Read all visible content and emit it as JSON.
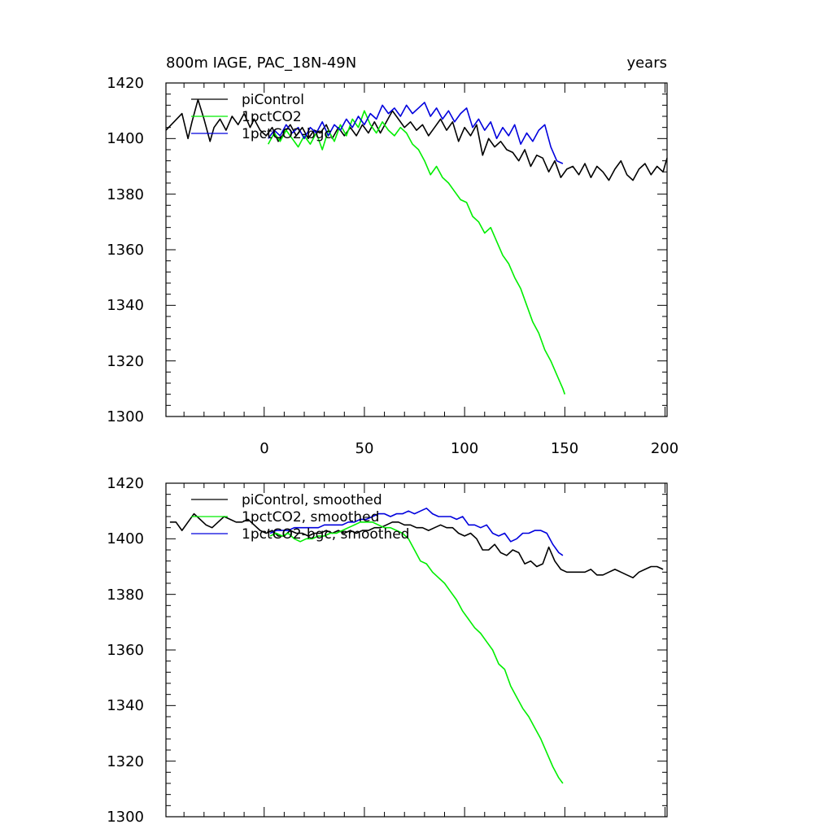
{
  "chart_data": [
    {
      "type": "line",
      "title": "800m IAGE, PAC_18N-49N",
      "xlabel": "years",
      "ylabel": "",
      "xlim": [
        -49,
        201
      ],
      "ylim": [
        1300,
        1420
      ],
      "xticks": [
        "0",
        "50",
        "100",
        "150",
        "200"
      ],
      "yticks": [
        "1300",
        "1320",
        "1340",
        "1360",
        "1380",
        "1400",
        "1420"
      ],
      "legend": {
        "position": "top-left"
      },
      "series": [
        {
          "name": "piControl",
          "color": "#000000",
          "x": [
            -49,
            -45,
            -41,
            -38,
            -36,
            -33,
            -30,
            -27,
            -25,
            -22,
            -19,
            -16,
            -13,
            -10,
            -7,
            -5,
            -2,
            1,
            4,
            7,
            10,
            13,
            16,
            19,
            22,
            25,
            28,
            31,
            34,
            37,
            40,
            43,
            46,
            49,
            52,
            55,
            58,
            61,
            64,
            67,
            70,
            73,
            76,
            79,
            82,
            85,
            88,
            91,
            94,
            97,
            100,
            103,
            106,
            109,
            112,
            115,
            118,
            121,
            124,
            127,
            130,
            133,
            136,
            139,
            142,
            145,
            148,
            151,
            154,
            157,
            160,
            163,
            166,
            169,
            172,
            175,
            178,
            181,
            184,
            187,
            190,
            193,
            196,
            199,
            201
          ],
          "values": [
            1403,
            1406,
            1409,
            1400,
            1406,
            1414,
            1407,
            1399,
            1404,
            1407,
            1403,
            1408,
            1405,
            1409,
            1404,
            1407,
            1403,
            1401,
            1404,
            1399,
            1402,
            1405,
            1401,
            1404,
            1400,
            1403,
            1402,
            1405,
            1400,
            1404,
            1401,
            1404,
            1401,
            1405,
            1402,
            1406,
            1402,
            1406,
            1410,
            1407,
            1404,
            1406,
            1403,
            1405,
            1401,
            1404,
            1407,
            1403,
            1406,
            1399,
            1404,
            1401,
            1405,
            1394,
            1400,
            1397,
            1399,
            1396,
            1395,
            1392,
            1396,
            1390,
            1394,
            1393,
            1388,
            1392,
            1386,
            1389,
            1390,
            1387,
            1391,
            1386,
            1390,
            1388,
            1385,
            1389,
            1392,
            1387,
            1385,
            1389,
            1391,
            1387,
            1390,
            1388,
            1393
          ]
        },
        {
          "name": "1pctCO2",
          "color": "#00ee00",
          "x": [
            2,
            5,
            8,
            11,
            14,
            17,
            20,
            23,
            26,
            29,
            32,
            35,
            38,
            41,
            44,
            47,
            50,
            53,
            56,
            59,
            62,
            65,
            68,
            71,
            74,
            77,
            80,
            83,
            86,
            89,
            92,
            95,
            98,
            101,
            104,
            107,
            110,
            113,
            116,
            119,
            122,
            125,
            128,
            131,
            134,
            137,
            140,
            143,
            146,
            149,
            150
          ],
          "values": [
            1398,
            1402,
            1399,
            1403,
            1400,
            1397,
            1401,
            1398,
            1402,
            1396,
            1403,
            1399,
            1405,
            1401,
            1407,
            1404,
            1410,
            1405,
            1402,
            1406,
            1403,
            1401,
            1404,
            1402,
            1398,
            1396,
            1392,
            1387,
            1390,
            1386,
            1384,
            1381,
            1378,
            1377,
            1372,
            1370,
            1366,
            1368,
            1363,
            1358,
            1355,
            1350,
            1346,
            1340,
            1334,
            1330,
            1324,
            1320,
            1315,
            1310,
            1308
          ]
        },
        {
          "name": "1pctCO2-bgc",
          "color": "#0000dd",
          "x": [
            2,
            5,
            8,
            11,
            14,
            17,
            20,
            23,
            26,
            29,
            32,
            35,
            38,
            41,
            44,
            47,
            50,
            53,
            56,
            59,
            62,
            65,
            68,
            71,
            74,
            77,
            80,
            83,
            86,
            89,
            92,
            95,
            98,
            101,
            104,
            107,
            110,
            113,
            116,
            119,
            122,
            125,
            128,
            131,
            134,
            137,
            140,
            143,
            146,
            149
          ],
          "values": [
            1400,
            1403,
            1401,
            1405,
            1402,
            1404,
            1400,
            1404,
            1402,
            1406,
            1401,
            1405,
            1403,
            1407,
            1404,
            1408,
            1405,
            1409,
            1407,
            1412,
            1409,
            1411,
            1408,
            1412,
            1409,
            1411,
            1413,
            1408,
            1411,
            1407,
            1410,
            1406,
            1409,
            1411,
            1404,
            1407,
            1403,
            1406,
            1400,
            1404,
            1401,
            1405,
            1398,
            1402,
            1399,
            1403,
            1405,
            1397,
            1392,
            1391
          ]
        }
      ]
    },
    {
      "type": "line",
      "title": "",
      "xlabel": "",
      "ylabel": "",
      "xlim": [
        -49,
        201
      ],
      "ylim": [
        1300,
        1420
      ],
      "yticks": [
        "1300",
        "1320",
        "1340",
        "1360",
        "1380",
        "1400",
        "1420"
      ],
      "legend": {
        "position": "top-left"
      },
      "series": [
        {
          "name": "piControl, smoothed",
          "color": "#000000",
          "x": [
            -47,
            -44,
            -41,
            -38,
            -35,
            -32,
            -29,
            -26,
            -23,
            -20,
            -17,
            -14,
            -11,
            -8,
            -5,
            -2,
            1,
            4,
            7,
            10,
            13,
            16,
            19,
            22,
            25,
            28,
            31,
            34,
            37,
            40,
            43,
            46,
            49,
            52,
            55,
            58,
            61,
            64,
            67,
            70,
            73,
            76,
            79,
            82,
            85,
            88,
            91,
            94,
            97,
            100,
            103,
            106,
            109,
            112,
            115,
            118,
            121,
            124,
            127,
            130,
            133,
            136,
            139,
            142,
            145,
            148,
            151,
            154,
            157,
            160,
            163,
            166,
            169,
            172,
            175,
            178,
            181,
            184,
            187,
            190,
            193,
            196,
            199
          ],
          "values": [
            1406,
            1406,
            1403,
            1406,
            1409,
            1407,
            1405,
            1404,
            1406,
            1408,
            1407,
            1406,
            1406,
            1407,
            1405,
            1403,
            1402,
            1403,
            1401,
            1401,
            1403,
            1402,
            1402,
            1401,
            1402,
            1402,
            1403,
            1402,
            1403,
            1402,
            1403,
            1402,
            1403,
            1403,
            1404,
            1404,
            1405,
            1406,
            1406,
            1405,
            1405,
            1404,
            1404,
            1403,
            1404,
            1405,
            1404,
            1404,
            1402,
            1401,
            1402,
            1400,
            1396,
            1396,
            1398,
            1395,
            1394,
            1396,
            1395,
            1391,
            1392,
            1390,
            1391,
            1397,
            1392,
            1389,
            1388,
            1388,
            1388,
            1388,
            1389,
            1387,
            1387,
            1388,
            1389,
            1388,
            1387,
            1386,
            1388,
            1389,
            1390,
            1390,
            1389
          ]
        },
        {
          "name": "1pctCO2, smoothed",
          "color": "#00ee00",
          "x": [
            3,
            6,
            9,
            12,
            15,
            18,
            21,
            24,
            27,
            30,
            33,
            36,
            39,
            42,
            45,
            48,
            51,
            54,
            57,
            60,
            63,
            66,
            69,
            72,
            75,
            78,
            81,
            84,
            87,
            90,
            93,
            96,
            99,
            102,
            105,
            108,
            111,
            114,
            117,
            120,
            123,
            126,
            129,
            132,
            135,
            138,
            141,
            144,
            147,
            149
          ],
          "values": [
            1401,
            1402,
            1401,
            1402,
            1400,
            1399,
            1400,
            1400,
            1401,
            1401,
            1402,
            1402,
            1403,
            1404,
            1405,
            1406,
            1406,
            1406,
            1405,
            1404,
            1404,
            1403,
            1402,
            1400,
            1396,
            1392,
            1391,
            1388,
            1386,
            1384,
            1381,
            1378,
            1374,
            1371,
            1368,
            1366,
            1363,
            1360,
            1355,
            1353,
            1347,
            1343,
            1339,
            1336,
            1332,
            1328,
            1323,
            1318,
            1314,
            1312
          ]
        },
        {
          "name": "1pctCO2-bgc, smoothed",
          "color": "#0000dd",
          "x": [
            3,
            6,
            9,
            12,
            15,
            18,
            21,
            24,
            27,
            30,
            33,
            36,
            39,
            42,
            45,
            48,
            51,
            54,
            57,
            60,
            63,
            66,
            69,
            72,
            75,
            78,
            81,
            84,
            87,
            90,
            93,
            96,
            99,
            102,
            105,
            108,
            111,
            114,
            117,
            120,
            123,
            126,
            129,
            132,
            135,
            138,
            141,
            144,
            147,
            149
          ],
          "values": [
            1402,
            1403,
            1403,
            1403,
            1404,
            1404,
            1404,
            1404,
            1404,
            1405,
            1405,
            1405,
            1405,
            1406,
            1406,
            1407,
            1407,
            1408,
            1409,
            1409,
            1408,
            1409,
            1409,
            1410,
            1409,
            1410,
            1411,
            1409,
            1408,
            1408,
            1408,
            1407,
            1408,
            1405,
            1405,
            1404,
            1405,
            1402,
            1401,
            1402,
            1399,
            1400,
            1402,
            1402,
            1403,
            1403,
            1402,
            1398,
            1395,
            1394
          ]
        }
      ]
    }
  ]
}
